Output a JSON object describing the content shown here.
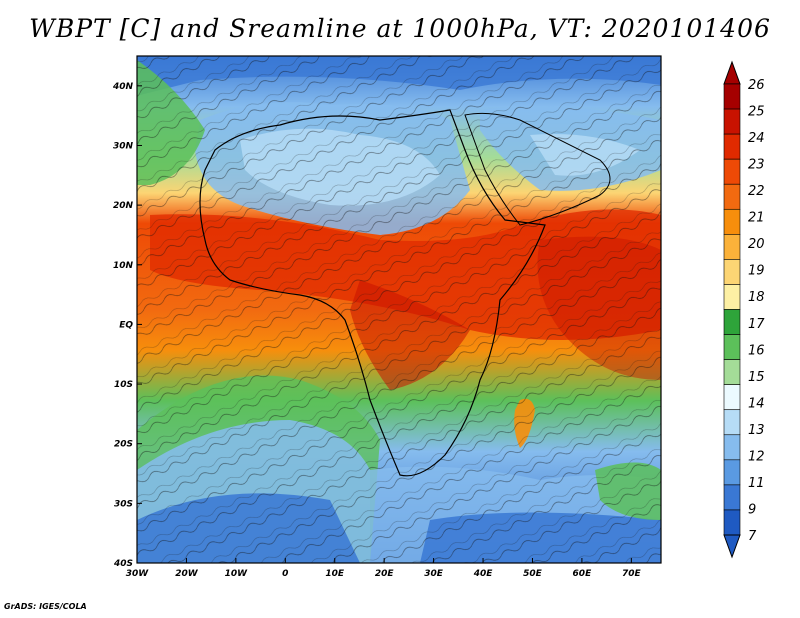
{
  "title": "WBPT [C] and Sreamline at 1000hPa, VT: 2020101406",
  "credit": "GrADS: IGES/COLA",
  "map": {
    "lon_range": [
      -30,
      76
    ],
    "lat_range": [
      -40,
      45
    ],
    "x_ticks": [
      {
        "value": -30,
        "label": "30W"
      },
      {
        "value": -20,
        "label": "20W"
      },
      {
        "value": -10,
        "label": "10W"
      },
      {
        "value": 0,
        "label": "0"
      },
      {
        "value": 10,
        "label": "10E"
      },
      {
        "value": 20,
        "label": "20E"
      },
      {
        "value": 30,
        "label": "30E"
      },
      {
        "value": 40,
        "label": "40E"
      },
      {
        "value": 50,
        "label": "50E"
      },
      {
        "value": 60,
        "label": "60E"
      },
      {
        "value": 70,
        "label": "70E"
      }
    ],
    "y_ticks": [
      {
        "value": 40,
        "label": "40N"
      },
      {
        "value": 30,
        "label": "30N"
      },
      {
        "value": 20,
        "label": "20N"
      },
      {
        "value": 10,
        "label": "10N"
      },
      {
        "value": 0,
        "label": "EQ"
      },
      {
        "value": -10,
        "label": "10S"
      },
      {
        "value": -20,
        "label": "20S"
      },
      {
        "value": -30,
        "label": "30S"
      },
      {
        "value": -40,
        "label": "40S"
      }
    ]
  },
  "colorbar": {
    "labels": [
      "26",
      "25",
      "24",
      "23",
      "22",
      "21",
      "20",
      "19",
      "18",
      "17",
      "16",
      "15",
      "14",
      "13",
      "12",
      "11",
      "9",
      "7"
    ],
    "colors": [
      "#a50000",
      "#c81200",
      "#e02a00",
      "#ee4a06",
      "#f26a10",
      "#f78e0c",
      "#fbb23a",
      "#fcd574",
      "#fdf0a4",
      "#2ea43a",
      "#5cc05a",
      "#a4dc98",
      "#ecfaff",
      "#b6dcf6",
      "#86bcee",
      "#5a9ae2",
      "#3a78d4",
      "#1f5ac2"
    ]
  }
}
